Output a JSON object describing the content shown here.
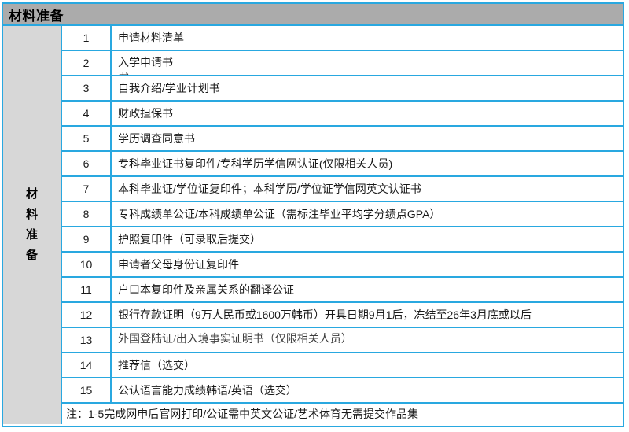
{
  "header": {
    "title": "材料准备"
  },
  "side_label": "材料准备",
  "rows": [
    {
      "num": "1",
      "text": "申请材料清单"
    },
    {
      "num": "2",
      "text": "入学申请书\n书"
    },
    {
      "num": "3",
      "text": "自我介绍/学业计划书"
    },
    {
      "num": "4",
      "text": "财政担保书"
    },
    {
      "num": "5",
      "text": "学历调查同意书"
    },
    {
      "num": "6",
      "text": "专科毕业证书复印件/专科学历学信网认证(仅限相关人员)"
    },
    {
      "num": "7",
      "text": "本科毕业证/学位证复印件；本科学历/学位证学信网英文认证书"
    },
    {
      "num": "8",
      "text": "专科成绩单公证/本科成绩单公证（需标注毕业平均学分绩点GPA）"
    },
    {
      "num": "9",
      "text": "护照复印件（可录取后提交）"
    },
    {
      "num": "10",
      "text": "申请者父母身份证复印件"
    },
    {
      "num": "11",
      "text": "户口本复印件及亲属关系的翻译公证"
    },
    {
      "num": "12",
      "text": "银行存款证明（9万人民币或1600万韩币）开具日期9月1后，冻结至26年3月底或以后"
    },
    {
      "num": "13",
      "text": "外国登陆证/出入境事实证明书（仅限相关人员）",
      "serif": true
    },
    {
      "num": "14",
      "text": "推荐信（选交）"
    },
    {
      "num": "15",
      "text": "公认语言能力成绩韩语/英语（选交）"
    }
  ],
  "note": "注：1-5完成网申后官网打印/公证需中英文公证/艺术体育无需提交作品集",
  "colors": {
    "border": "#29a8e0",
    "header_bg": "#ababab",
    "side_bg": "#d7d7d7",
    "text": "#1a1a1a",
    "serif_text": "#3d3d3d"
  }
}
